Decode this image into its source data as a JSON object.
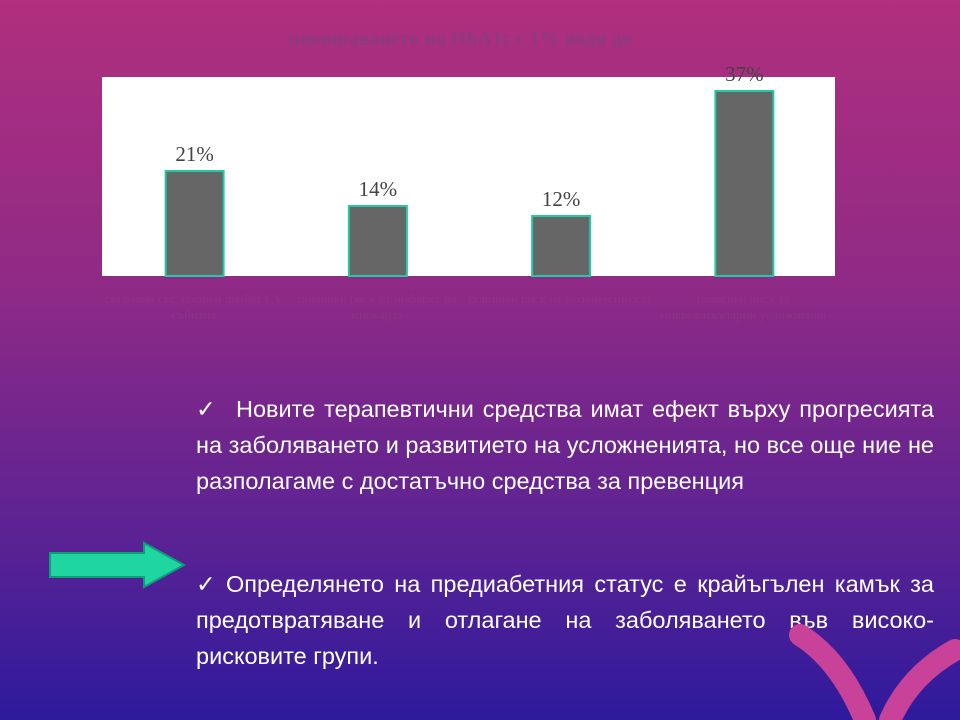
{
  "slide": {
    "bullets": [
      {
        "check": "✓",
        "text": "Новите терапевтични средства имат ефект върху прогресията на заболяването и развитието на усложненията, но все още ние не разполагаме с достатъчно средства за превенция"
      },
      {
        "check": "✓",
        "text": "Определянето на предиабетния статус е крайъгълен камък за предотвратяване и отлагане на заболяването във високо-рисковите групи."
      }
    ]
  },
  "chart_data": {
    "type": "bar",
    "title": "повишаването на HbA1c с 1% води до",
    "categories": [
      "свързани със захарен диабет CV събития",
      "повишен риск от инфаркт на миокарда",
      "повишен риск от мозъчен инсулт",
      "повишен риск за микроваскуларни усложнения"
    ],
    "values": [
      21,
      14,
      12,
      37
    ],
    "data_labels": [
      "21%",
      "14%",
      "12%",
      "37%"
    ],
    "ylim": [
      0,
      40
    ],
    "grid": false,
    "colors": {
      "bar_fill": "#666666",
      "bar_stroke": "#22c9a6",
      "plot_bg": "#ffffff",
      "title": "#8c3a82",
      "category_text": "#8f3384",
      "label_text": "#444444"
    }
  },
  "decor": {
    "arrow_icon": "right-arrow-icon",
    "arrow_color": "#1fd6a0",
    "logo_color": "#c8429a"
  }
}
